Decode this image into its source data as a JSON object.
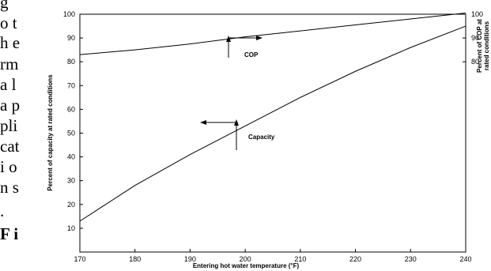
{
  "side_text": {
    "lines": [
      "g",
      "o t",
      "h e",
      "rm",
      "a l",
      "a p",
      "pli",
      "cat",
      "i o",
      "n s",
      ".",
      "F i"
    ]
  },
  "chart_data": {
    "type": "line",
    "x": [
      170,
      180,
      190,
      200,
      210,
      220,
      230,
      240
    ],
    "series": [
      {
        "name": "COP",
        "values": [
          83,
          85,
          87.5,
          90.5,
          93,
          95.5,
          98,
          100.5
        ],
        "axis": "right"
      },
      {
        "name": "Capacity",
        "values": [
          13,
          28,
          41,
          53,
          65,
          76,
          86,
          95
        ],
        "axis": "left"
      }
    ],
    "xlabel": "Entering hot water temperature (°F)",
    "ylabel": "Percent of capacity at rated conditions",
    "y2label_line1": "Percent of COP at",
    "y2label_line2": "rated conditions",
    "xlim": [
      170,
      240
    ],
    "ylim": [
      0,
      100
    ],
    "y2lim": [
      0,
      100
    ],
    "x_ticks": [
      "170",
      "180",
      "190",
      "200",
      "210",
      "220",
      "230",
      "240"
    ],
    "y_ticks": [
      "10",
      "20",
      "30",
      "40",
      "50",
      "60",
      "70",
      "80",
      "90",
      "100"
    ],
    "y2_ticks": [
      "80",
      "90",
      "100"
    ],
    "grid": false,
    "annotations": {
      "cop": "COP",
      "capacity": "Capacity"
    }
  }
}
